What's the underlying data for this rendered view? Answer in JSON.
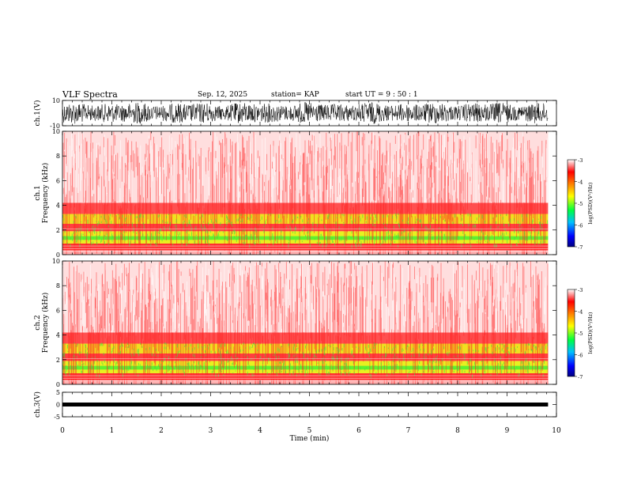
{
  "header": {
    "title": "VLF Spectra",
    "date": "Sep. 12, 2025",
    "station": "station= KAP",
    "start": "start  UT =   9 : 50 : 1"
  },
  "chart_data": [
    {
      "type": "line",
      "name": "ch1-waveform",
      "ylabel": "ch.1(V)",
      "ylim": [
        -10,
        10
      ],
      "yticks": [
        "10",
        "-10"
      ],
      "xlim": [
        0,
        10
      ]
    },
    {
      "type": "heatmap",
      "name": "ch1-spectrogram",
      "ylabel": "ch.1\nFrequency (kHz)",
      "ylabel_lines": [
        "ch.1",
        "Frequency (kHz)"
      ],
      "ylim": [
        0,
        10
      ],
      "yticks": [
        "0",
        "2",
        "4",
        "6",
        "8",
        "10"
      ],
      "xlim": [
        0,
        10
      ],
      "data_end_min": 9.83
    },
    {
      "type": "heatmap",
      "name": "ch2-spectrogram",
      "ylabel": "ch.2\nFrequency (kHz)",
      "ylabel_lines": [
        "ch.2",
        "Frequency (kHz)"
      ],
      "ylim": [
        0,
        10
      ],
      "yticks": [
        "0",
        "2",
        "4",
        "6",
        "8",
        "10"
      ],
      "xlim": [
        0,
        10
      ],
      "data_end_min": 9.83
    },
    {
      "type": "line",
      "name": "ch3-waveform",
      "ylabel": "ch.3(V)",
      "ylim": [
        -5,
        5
      ],
      "yticks": [
        "5",
        "0",
        "-5"
      ],
      "xlim": [
        0,
        10
      ],
      "xlabel": "Time (min)",
      "xticks": [
        "0",
        "1",
        "2",
        "3",
        "4",
        "5",
        "6",
        "7",
        "8",
        "9",
        "10"
      ]
    }
  ],
  "colorbar": {
    "label": "log(PSD)(V²/Hz)",
    "ticks": [
      "-3",
      "-4",
      "-5",
      "-6",
      "-7"
    ],
    "range": [
      -7,
      -3
    ],
    "colors": [
      "#000080",
      "#0000ff",
      "#00c0ff",
      "#00ff40",
      "#ffff00",
      "#ff8000",
      "#ff0000",
      "#ffffff"
    ]
  }
}
